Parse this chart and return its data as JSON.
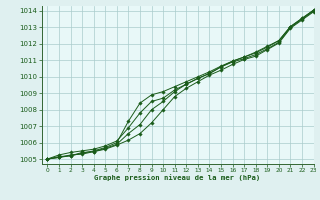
{
  "title": "Graphe pression niveau de la mer (hPa)",
  "bg_color": "#dff0f0",
  "plot_bg_color": "#e8f8f8",
  "line_color": "#1a5c1a",
  "grid_color": "#aacccc",
  "spine_color": "#336633",
  "xlim": [
    -0.5,
    23
  ],
  "ylim": [
    1004.7,
    1014.3
  ],
  "xticks": [
    0,
    1,
    2,
    3,
    4,
    5,
    6,
    7,
    8,
    9,
    10,
    11,
    12,
    13,
    14,
    15,
    16,
    17,
    18,
    19,
    20,
    21,
    22,
    23
  ],
  "yticks": [
    1005,
    1006,
    1007,
    1008,
    1009,
    1010,
    1011,
    1012,
    1013,
    1014
  ],
  "series": [
    [
      1005.0,
      1005.15,
      1005.2,
      1005.4,
      1005.45,
      1005.6,
      1005.85,
      1006.15,
      1006.55,
      1007.2,
      1008.0,
      1008.8,
      1009.3,
      1009.7,
      1010.1,
      1010.4,
      1010.75,
      1011.05,
      1011.25,
      1011.65,
      1012.05,
      1012.95,
      1013.45,
      1013.95
    ],
    [
      1005.0,
      1005.25,
      1005.4,
      1005.5,
      1005.6,
      1005.8,
      1006.1,
      1006.9,
      1007.8,
      1008.5,
      1008.7,
      1009.2,
      1009.55,
      1009.9,
      1010.2,
      1010.6,
      1010.95,
      1011.2,
      1011.5,
      1011.85,
      1012.2,
      1013.05,
      1013.55,
      1014.05
    ],
    [
      1005.0,
      1005.1,
      1005.25,
      1005.3,
      1005.45,
      1005.65,
      1005.9,
      1006.55,
      1007.1,
      1008.0,
      1008.5,
      1009.1,
      1009.55,
      1009.9,
      1010.2,
      1010.6,
      1010.9,
      1011.1,
      1011.35,
      1011.7,
      1012.1,
      1013.0,
      1013.5,
      1014.0
    ],
    [
      1005.0,
      1005.1,
      1005.2,
      1005.35,
      1005.5,
      1005.7,
      1006.0,
      1007.3,
      1008.4,
      1008.9,
      1009.1,
      1009.4,
      1009.7,
      1010.0,
      1010.3,
      1010.65,
      1010.95,
      1011.2,
      1011.45,
      1011.8,
      1012.2,
      1013.05,
      1013.55,
      1014.05
    ]
  ]
}
